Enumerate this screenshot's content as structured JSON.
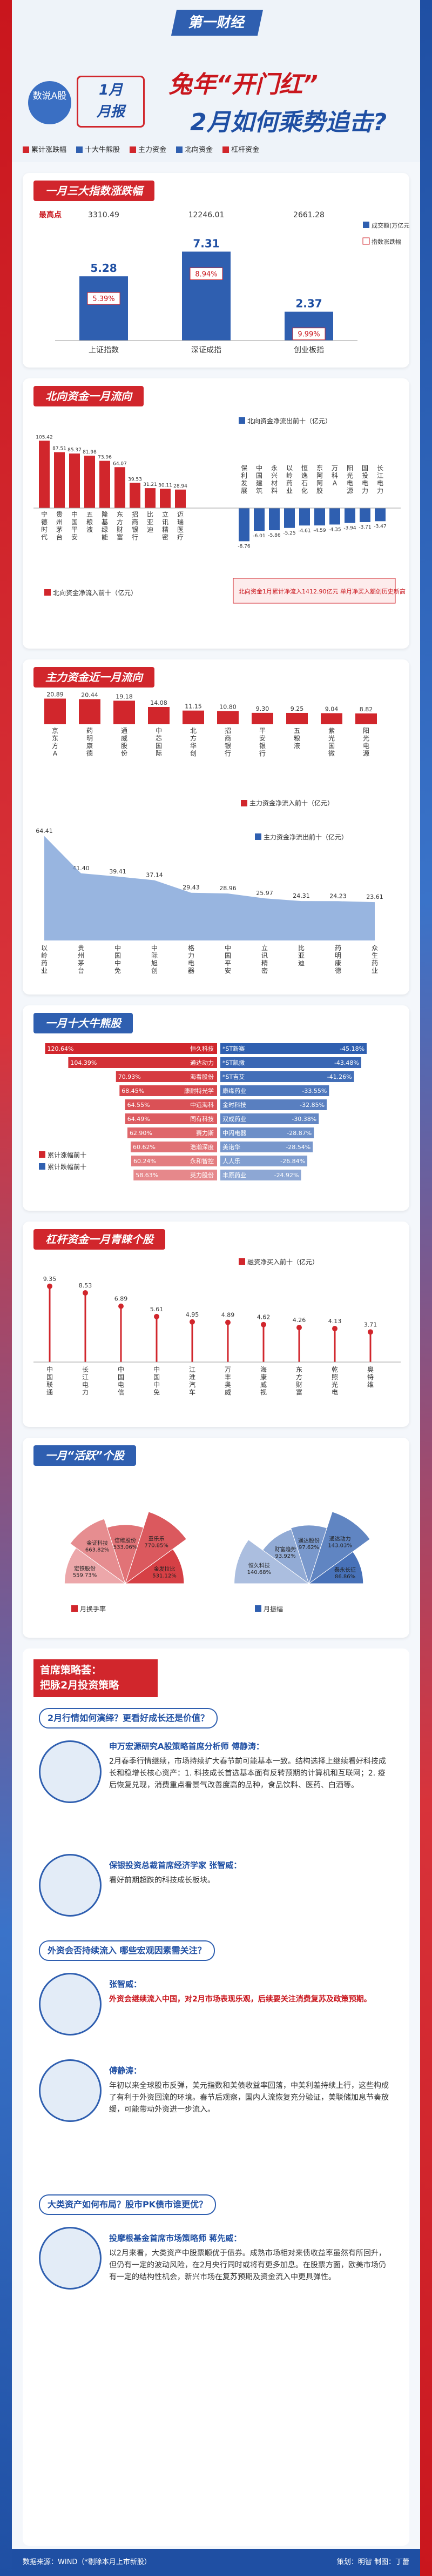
{
  "header": {
    "logo": "第一财经",
    "tag": "数说A股",
    "month_label": "1月\n月报",
    "title_line1": "兔年“开门红”",
    "title_line2": "2月如何乘势追击?",
    "legend": [
      "累计涨跌幅",
      "十大牛熊股",
      "主力资金",
      "北向资金",
      "杠杆资金"
    ],
    "legend_colors": [
      "#d1262c",
      "#2f5fb0",
      "#d1262c",
      "#2f5fb0",
      "#d1262c"
    ]
  },
  "sec1": {
    "title": "一月三大指数涨跌幅",
    "row_label": "最高点",
    "highs": [
      "3310.49",
      "12246.01",
      "2661.28"
    ],
    "indices": [
      "上证指数",
      "深证成指",
      "创业板指"
    ],
    "volumes": [
      "5.28",
      "7.31",
      "2.37"
    ],
    "pcts": [
      "5.39%",
      "8.94%",
      "9.99%"
    ],
    "legend_vol": "成交额(万亿元)",
    "legend_pct": "指数涨跌幅"
  },
  "sec2": {
    "title": "北向资金一月流向",
    "inflow_legend": "北向资金净流入前十（亿元）",
    "outflow_legend": "北向资金净流出前十（亿元）",
    "note": "北向资金1月累计净流入1412.90亿元 单月净买入额创历史新高",
    "inflow": [
      {
        "name": "宁德时代",
        "value": "105.42"
      },
      {
        "name": "贵州茅台",
        "value": "87.51"
      },
      {
        "name": "中国平安",
        "value": "85.37"
      },
      {
        "name": "五粮液",
        "value": "81.98"
      },
      {
        "name": "隆基绿能",
        "value": "73.96"
      },
      {
        "name": "东方财富",
        "value": "64.07"
      },
      {
        "name": "招商银行",
        "value": "39.53"
      },
      {
        "name": "比亚迪",
        "value": "31.21"
      },
      {
        "name": "立讯精密",
        "value": "30.11"
      },
      {
        "name": "迈瑞医疗",
        "value": "28.94"
      }
    ],
    "outflow": [
      {
        "name": "保利发展",
        "value": "-8.76"
      },
      {
        "name": "中国建筑",
        "value": "-6.01"
      },
      {
        "name": "永兴材料",
        "value": "-5.86"
      },
      {
        "name": "以岭药业",
        "value": "-5.25"
      },
      {
        "name": "恒逸石化",
        "value": "-4.61"
      },
      {
        "name": "东阿阿胶",
        "value": "-4.59"
      },
      {
        "name": "万科A",
        "value": "-4.35"
      },
      {
        "name": "阳光电源",
        "value": "-3.94"
      },
      {
        "name": "国投电力",
        "value": "-3.71"
      },
      {
        "name": "长江电力",
        "value": "-3.47"
      }
    ]
  },
  "sec3": {
    "title": "主力资金近一月流向",
    "inflow_legend": "主力资金净流入前十（亿元）",
    "outflow_legend": "主力资金净流出前十（亿元）",
    "inflow": [
      {
        "name": "京东方A",
        "value": "20.89"
      },
      {
        "name": "药明康德",
        "value": "20.44"
      },
      {
        "name": "通威股份",
        "value": "19.18"
      },
      {
        "name": "中芯国际",
        "value": "14.08"
      },
      {
        "name": "北方华创",
        "value": "11.15"
      },
      {
        "name": "招商银行",
        "value": "10.80"
      },
      {
        "name": "平安银行",
        "value": "9.30"
      },
      {
        "name": "五粮液",
        "value": "9.25"
      },
      {
        "name": "紫光国微",
        "value": "9.04"
      },
      {
        "name": "阳光电源",
        "value": "8.82"
      }
    ],
    "outflow": [
      {
        "name": "以岭药业",
        "value": "64.41"
      },
      {
        "name": "贵州茅台",
        "value": "41.40"
      },
      {
        "name": "中国中免",
        "value": "39.41"
      },
      {
        "name": "中际旭创",
        "value": "37.14"
      },
      {
        "name": "格力电器",
        "value": "29.43"
      },
      {
        "name": "中国平安",
        "value": "28.96"
      },
      {
        "name": "立讯精密",
        "value": "25.97"
      },
      {
        "name": "比亚迪",
        "value": "24.31"
      },
      {
        "name": "药明康德",
        "value": "24.23"
      },
      {
        "name": "众生药业",
        "value": "23.61"
      }
    ]
  },
  "sec4": {
    "title": "一月十大牛熊股",
    "gain_legend": "累计涨幅前十",
    "loss_legend": "累计跌幅前十",
    "gainers": [
      {
        "name": "恒久科技",
        "value": "120.64%"
      },
      {
        "name": "通达动力",
        "value": "104.39%"
      },
      {
        "name": "海看股份",
        "value": "70.93%"
      },
      {
        "name": "康耐特光学",
        "value": "68.45%"
      },
      {
        "name": "中远海科",
        "value": "64.55%"
      },
      {
        "name": "同有科技",
        "value": "64.49%"
      },
      {
        "name": "赛力斯",
        "value": "62.90%"
      },
      {
        "name": "浩瀚深度",
        "value": "60.62%"
      },
      {
        "name": "永和智控",
        "value": "60.24%"
      },
      {
        "name": "英力股份",
        "value": "58.63%"
      }
    ],
    "losers": [
      {
        "name": "*ST新赛",
        "value": "-45.18%"
      },
      {
        "name": "*ST凯撒",
        "value": "-43.48%"
      },
      {
        "name": "*ST吉艾",
        "value": "-41.26%"
      },
      {
        "name": "康缘药业",
        "value": "-33.55%"
      },
      {
        "name": "金时科技",
        "value": "-32.85%"
      },
      {
        "name": "双成药业",
        "value": "-30.38%"
      },
      {
        "name": "中闪电器",
        "value": "-28.87%"
      },
      {
        "name": "美诺华",
        "value": "-28.54%"
      },
      {
        "name": "人人乐",
        "value": "-26.84%"
      },
      {
        "name": "丰原药业",
        "value": "-24.92%"
      }
    ]
  },
  "sec5": {
    "title": "杠杆资金一月青睐个股",
    "legend": "融资净买入前十（亿元）",
    "items": [
      {
        "name": "中国联通",
        "value": "9.35"
      },
      {
        "name": "长江电力",
        "value": "8.53"
      },
      {
        "name": "中国电信",
        "value": "6.89"
      },
      {
        "name": "中国中免",
        "value": "5.61"
      },
      {
        "name": "江淮汽车",
        "value": "4.95"
      },
      {
        "name": "万丰奥威",
        "value": "4.89"
      },
      {
        "name": "海康威视",
        "value": "4.62"
      },
      {
        "name": "东方财富",
        "value": "4.26"
      },
      {
        "name": "乾照光电",
        "value": "4.13"
      },
      {
        "name": "奥特维",
        "value": "3.71"
      }
    ]
  },
  "sec6": {
    "title": "一月“活跃”个股",
    "left_legend": "月换手率",
    "right_legend": "月振幅",
    "turnover": [
      {
        "name": "宏铁股份",
        "value": "559.73%"
      },
      {
        "name": "金证科技",
        "value": "663.82%"
      },
      {
        "name": "信维股份",
        "value": "533.06%"
      },
      {
        "name": "重乐乐",
        "value": "770.85%"
      },
      {
        "name": "金发拉比",
        "value": "531.12%"
      }
    ],
    "amplitude": [
      {
        "name": "恒久科技",
        "value": "140.68%"
      },
      {
        "name": "财富趋势",
        "value": "93.92%"
      },
      {
        "name": "通达股份",
        "value": "97.62%"
      },
      {
        "name": "通达动力",
        "value": "143.03%"
      },
      {
        "name": "泰永长征",
        "value": "86.86%"
      }
    ]
  },
  "strategy": {
    "title_line1": "首席策略荟：",
    "title_line2": "把脉2月投资策略",
    "q1": "2月行情如何演绎？更看好成长还是价值？",
    "p1_name": "申万宏源研究A股策略首席分析师 傅静涛：",
    "p1_text": "2月春季行情继续，市场持续扩大春节前可能基本一致。结构选择上继续看好科技成长和稳增长核心资产：1. 科技成长首选基本面有反转预期的计算机和互联网；2. 疫后恢复兑现，消费重点看景气改善度高的品种，食品饮料、医药、白酒等。",
    "p2_name": "保银投资总裁首席经济学家 张智威：",
    "p2_text": "看好前期超跌的科技成长板块。",
    "q2": "外资会否持续流入 哪些宏观因素需关注？",
    "p3_name": "张智威：",
    "p3_text": "外资会继续流入中国，对2月市场表现乐观，后续要关注消费复苏及政策预期。",
    "p4_name": "傅静涛：",
    "p4_text": "年初以来全球股市反弹，美元指数和美债收益率回落，中美利差持续上行，这些构成了有利于外资回流的环境。春节后观察，国内人流恢复充分验证，美联储加息节奏放缓，可能带动外资进一步流入。",
    "q3": "大类资产如何布局？股市PK债市谁更优？",
    "p5_name": "投摩根基金首席市场策略师 蒋先威：",
    "p5_text": "以2月来看，大类资产中股票顺优于债券。成熟市场相对来债收益率虽然有所回升，但仍有一定的波动风险，在2月央行同时或将有更多加息。在股票方面，欧美市场仍有一定的结构性机会，新兴市场在复苏预期及资金流入中更具弹性。"
  },
  "footer": {
    "source": "数据来源：WIND（*剔除本月上市新股）",
    "credit": "策划：明智  制图：丁蕾"
  }
}
